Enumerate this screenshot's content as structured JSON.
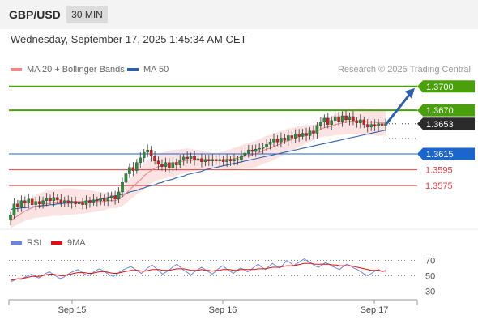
{
  "header": {
    "symbol": "GBP/USD",
    "timeframe": "30 MIN",
    "timestamp": "Wednesday, September 17, 2025 1:45:34 AM CET"
  },
  "legend": {
    "bollinger": {
      "label": "MA 20 + Bollinger Bands",
      "color": "#f08a8a"
    },
    "ma50": {
      "label": "MA 50",
      "color": "#2f5fa8"
    },
    "copyright": "Research © 2025 Trading Central"
  },
  "rsi_legend": {
    "rsi": {
      "label": "RSI",
      "color": "#6a86d8"
    },
    "ma9": {
      "label": "9MA",
      "color": "#e01010"
    }
  },
  "chart_data": [
    {
      "type": "candlestick",
      "title": "",
      "xlabel": "",
      "ylabel": "",
      "ylim": [
        1.3518,
        1.3712
      ],
      "x_ticks": [
        "Sep 15",
        "Sep 16",
        "Sep 17"
      ],
      "grid": false,
      "levels": [
        {
          "label": "1.3700",
          "value": 1.37,
          "color": "#4aa00a",
          "kind": "resistance"
        },
        {
          "label": "1.3670",
          "value": 1.367,
          "color": "#4aa00a",
          "kind": "resistance"
        },
        {
          "label": "1.3653",
          "value": 1.3653,
          "color": "#2b2b2b",
          "kind": "last-price"
        },
        {
          "label": "1.3615",
          "value": 1.3615,
          "color": "#1a66cc",
          "kind": "pivot"
        },
        {
          "label": "1.3595",
          "value": 1.3595,
          "color": "#e04040",
          "kind": "support"
        },
        {
          "label": "1.3575",
          "value": 1.3575,
          "color": "#e04040",
          "kind": "support"
        }
      ],
      "close_series": [
        1.3538,
        1.3552,
        1.3548,
        1.3556,
        1.3553,
        1.3558,
        1.3551,
        1.3555,
        1.3552,
        1.3556,
        1.3559,
        1.3556,
        1.356,
        1.3557,
        1.3554,
        1.3556,
        1.3553,
        1.3555,
        1.3552,
        1.3554,
        1.3551,
        1.3556,
        1.3554,
        1.3557,
        1.3556,
        1.3559,
        1.3556,
        1.356,
        1.3562,
        1.3558,
        1.3567,
        1.3579,
        1.359,
        1.3598,
        1.3594,
        1.3604,
        1.361,
        1.3617,
        1.362,
        1.3612,
        1.3606,
        1.3602,
        1.3599,
        1.3604,
        1.3597,
        1.3604,
        1.3601,
        1.3607,
        1.3611,
        1.3609,
        1.3612,
        1.3607,
        1.3609,
        1.3605,
        1.3608,
        1.3606,
        1.3608,
        1.3606,
        1.3608,
        1.3605,
        1.3608,
        1.3606,
        1.3608,
        1.3608,
        1.3613,
        1.3616,
        1.362,
        1.3618,
        1.3621,
        1.3622,
        1.3624,
        1.3627,
        1.363,
        1.3634,
        1.363,
        1.3635,
        1.3632,
        1.3638,
        1.3635,
        1.364,
        1.3637,
        1.3641,
        1.3638,
        1.3644,
        1.3641,
        1.3651,
        1.3655,
        1.366,
        1.3652,
        1.3657,
        1.3662,
        1.3656,
        1.3663,
        1.3658,
        1.3662,
        1.3657,
        1.3654,
        1.3658,
        1.3652,
        1.3649,
        1.3652,
        1.365,
        1.3653,
        1.3651,
        1.3653
      ],
      "ma20_series": [
        1.353,
        1.3534,
        1.3537,
        1.354,
        1.3543,
        1.3545,
        1.3547,
        1.3549,
        1.355,
        1.3551,
        1.3552,
        1.3553,
        1.3554,
        1.3554,
        1.3554,
        1.3555,
        1.3555,
        1.3555,
        1.3555,
        1.3555,
        1.3555,
        1.3555,
        1.3555,
        1.3555,
        1.3555,
        1.3555,
        1.3555,
        1.3556,
        1.3556,
        1.3556,
        1.3558,
        1.3561,
        1.3565,
        1.357,
        1.3574,
        1.3578,
        1.3582,
        1.3587,
        1.3591,
        1.3594,
        1.3597,
        1.3599,
        1.36,
        1.3601,
        1.3602,
        1.3603,
        1.3604,
        1.3605,
        1.3606,
        1.3607,
        1.3607,
        1.3607,
        1.3607,
        1.3607,
        1.3607,
        1.3607,
        1.3607,
        1.3607,
        1.3607,
        1.3607,
        1.3608,
        1.3608,
        1.3609,
        1.361,
        1.3611,
        1.3612,
        1.3613,
        1.3614,
        1.3615,
        1.3617,
        1.3619,
        1.3621,
        1.3622,
        1.3624,
        1.3626,
        1.3628,
        1.363,
        1.3632,
        1.3633,
        1.3635,
        1.3637,
        1.3638,
        1.364,
        1.3641,
        1.3642,
        1.3644,
        1.3646,
        1.3648,
        1.3649,
        1.365,
        1.3652,
        1.3653,
        1.3654,
        1.3655,
        1.3656,
        1.3656,
        1.3656,
        1.3656,
        1.3656,
        1.3655,
        1.3655,
        1.3655,
        1.3654,
        1.3654,
        1.3654
      ],
      "bb_width": 0.0013,
      "ma50_series": [
        1.3545,
        1.3546,
        1.3546,
        1.3547,
        1.3547,
        1.3548,
        1.3548,
        1.3549,
        1.3549,
        1.355,
        1.355,
        1.3551,
        1.3551,
        1.3552,
        1.3552,
        1.3553,
        1.3553,
        1.3553,
        1.3554,
        1.3554,
        1.3555,
        1.3555,
        1.3556,
        1.3556,
        1.3557,
        1.3558,
        1.3559,
        1.356,
        1.3561,
        1.3562,
        1.3563,
        1.3564,
        1.3565,
        1.3567,
        1.3568,
        1.3569,
        1.3571,
        1.3572,
        1.3574,
        1.3575,
        1.3576,
        1.3578,
        1.3579,
        1.3581,
        1.3582,
        1.3583,
        1.3585,
        1.3586,
        1.3587,
        1.3589,
        1.359,
        1.3591,
        1.3592,
        1.3593,
        1.3595,
        1.3596,
        1.3597,
        1.3598,
        1.3599,
        1.36,
        1.3601,
        1.3602,
        1.3603,
        1.3604,
        1.3605,
        1.3606,
        1.3607,
        1.3608,
        1.3609,
        1.361,
        1.3611,
        1.3612,
        1.3613,
        1.3614,
        1.3615,
        1.3616,
        1.3617,
        1.3618,
        1.3619,
        1.362,
        1.3621,
        1.3622,
        1.3623,
        1.3624,
        1.3625,
        1.3626,
        1.3627,
        1.3628,
        1.3629,
        1.363,
        1.3631,
        1.3632,
        1.3633,
        1.3634,
        1.3635,
        1.3636,
        1.3637,
        1.3638,
        1.3639,
        1.364,
        1.3641,
        1.3642,
        1.3643,
        1.3644,
        1.3645
      ]
    },
    {
      "type": "line",
      "title": "",
      "ylim": [
        25,
        80
      ],
      "y_ticks": [
        70,
        50,
        30
      ],
      "rsi_series": [
        42,
        44,
        46,
        45,
        48,
        50,
        52,
        49,
        47,
        50,
        53,
        55,
        52,
        49,
        46,
        48,
        51,
        54,
        56,
        58,
        55,
        52,
        50,
        53,
        56,
        59,
        57,
        54,
        51,
        49,
        52,
        55,
        58,
        60,
        62,
        59,
        56,
        53,
        57,
        61,
        64,
        60,
        56,
        52,
        55,
        58,
        62,
        65,
        61,
        57,
        54,
        51,
        55,
        58,
        61,
        58,
        55,
        52,
        56,
        60,
        63,
        59,
        56,
        53,
        57,
        60,
        58,
        55,
        58,
        62,
        65,
        61,
        58,
        62,
        66,
        63,
        60,
        64,
        70,
        67,
        63,
        66,
        69,
        72,
        69,
        66,
        63,
        61,
        64,
        67,
        65,
        62,
        60,
        58,
        62,
        65,
        63,
        60,
        58,
        55,
        52,
        50,
        53,
        56,
        58,
        55,
        57
      ],
      "ma9_series": [
        44,
        45,
        46,
        46,
        47,
        48,
        49,
        49,
        49,
        50,
        51,
        52,
        52,
        51,
        50,
        50,
        51,
        52,
        53,
        54,
        54,
        54,
        53,
        53,
        54,
        55,
        55,
        55,
        54,
        53,
        53,
        54,
        55,
        56,
        57,
        57,
        57,
        56,
        56,
        57,
        58,
        58,
        58,
        57,
        57,
        57,
        58,
        59,
        59,
        59,
        58,
        57,
        57,
        57,
        58,
        57,
        57,
        56,
        57,
        57,
        58,
        58,
        58,
        57,
        57,
        58,
        58,
        58,
        58,
        58,
        59,
        59,
        59,
        60,
        61,
        61,
        61,
        62,
        63,
        63,
        63,
        64,
        65,
        66,
        66,
        66,
        65,
        65,
        65,
        65,
        65,
        64,
        64,
        63,
        63,
        63,
        63,
        62,
        61,
        60,
        59,
        58,
        57,
        57,
        57,
        56,
        56
      ]
    }
  ]
}
